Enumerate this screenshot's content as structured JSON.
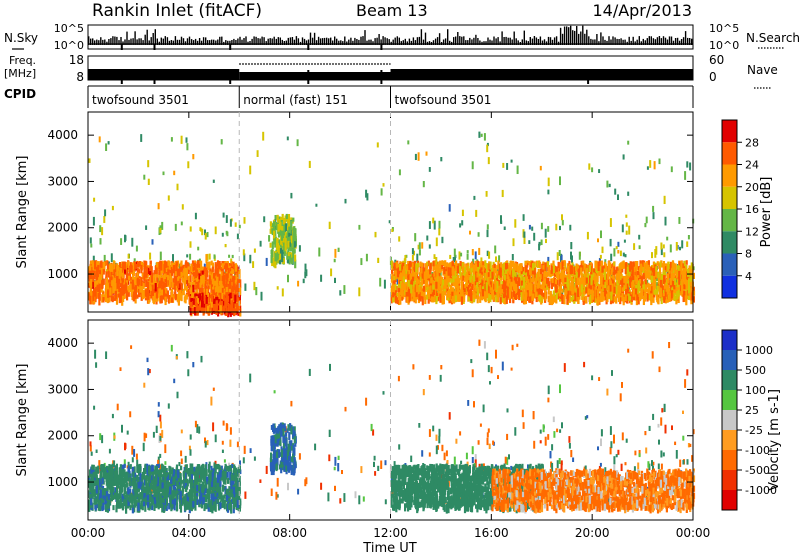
{
  "header": {
    "title": "Rankin Inlet (fitACF)",
    "beam": "Beam 13",
    "date": "14/Apr/2013"
  },
  "top_panels": {
    "nsky_label": "N.Sky",
    "nsearch_label": "N.Search",
    "nsky_ticks": [
      "10^5",
      "10^0"
    ],
    "nsky_ticks_right": [
      "10^5",
      "10^0"
    ],
    "freq_label": "Freq.",
    "freq_unit": "[MHz]",
    "freq_ticks": [
      "18",
      "8"
    ],
    "nave_label": "Nave",
    "nave_ticks": [
      "60",
      "0"
    ],
    "cpid_label": "CPID",
    "cpid_segments": [
      {
        "start_h": 0,
        "end_h": 6,
        "label": "twofsound 3501"
      },
      {
        "start_h": 6,
        "end_h": 12,
        "label": "normal (fast) 151"
      },
      {
        "start_h": 12,
        "end_h": 24,
        "label": "twofsound 3501"
      }
    ]
  },
  "chart_data": [
    {
      "type": "heatmap",
      "title": "",
      "ylabel": "Slant Range [km]",
      "xlim": [
        0,
        24
      ],
      "ylim": [
        180,
        4500
      ],
      "yticks": [
        "1000",
        "2000",
        "3000",
        "4000"
      ],
      "colorbar": {
        "label": "Power [dB]",
        "ticks": [
          "28",
          "24",
          "20",
          "16",
          "12",
          "8",
          "4"
        ],
        "colors": [
          "#e10000",
          "#ff5a00",
          "#ff9a00",
          "#d6c400",
          "#64b646",
          "#2f8a64",
          "#2a60b8",
          "#1030e0"
        ]
      },
      "features": [
        {
          "t": [
            0,
            6
          ],
          "range_km": [
            500,
            1300
          ],
          "power_db": 24
        },
        {
          "t": [
            4,
            6
          ],
          "range_km": [
            250,
            600
          ],
          "power_db": 26
        },
        {
          "t": [
            12,
            24
          ],
          "range_km": [
            500,
            1300
          ],
          "power_db": 22
        },
        {
          "t": [
            7.2,
            8.2
          ],
          "range_km": [
            1300,
            2300
          ],
          "power_db": 14
        }
      ]
    },
    {
      "type": "heatmap",
      "title": "",
      "ylabel": "Slant Range [km]",
      "xlim": [
        0,
        24
      ],
      "ylim": [
        180,
        4500
      ],
      "yticks": [
        "1000",
        "2000",
        "3000",
        "4000"
      ],
      "colorbar": {
        "label": "Velocity [m s-1]",
        "ticks": [
          "1000",
          "500",
          "100",
          "25",
          "-25",
          "-100",
          "-500",
          "-1000"
        ],
        "colors": [
          "#1c2fc8",
          "#2860b8",
          "#2e8a64",
          "#55c640",
          "#c8c8c8",
          "#ff9c20",
          "#ff6a00",
          "#f03000",
          "#e00000"
        ]
      },
      "features": [
        {
          "t": [
            0,
            6
          ],
          "range_km": [
            500,
            1400
          ],
          "velocity_ms": 400
        },
        {
          "t": [
            12,
            18
          ],
          "range_km": [
            500,
            1400
          ],
          "velocity_ms": 300
        },
        {
          "t": [
            16,
            24
          ],
          "range_km": [
            500,
            1300
          ],
          "velocity_ms": -150
        },
        {
          "t": [
            7.2,
            8.2
          ],
          "range_km": [
            1300,
            2300
          ],
          "velocity_ms": 600
        }
      ]
    }
  ],
  "x_axis": {
    "ticks": [
      "00:00",
      "04:00",
      "08:00",
      "12:00",
      "16:00",
      "20:00",
      "00:00"
    ],
    "label": "Time UT"
  }
}
